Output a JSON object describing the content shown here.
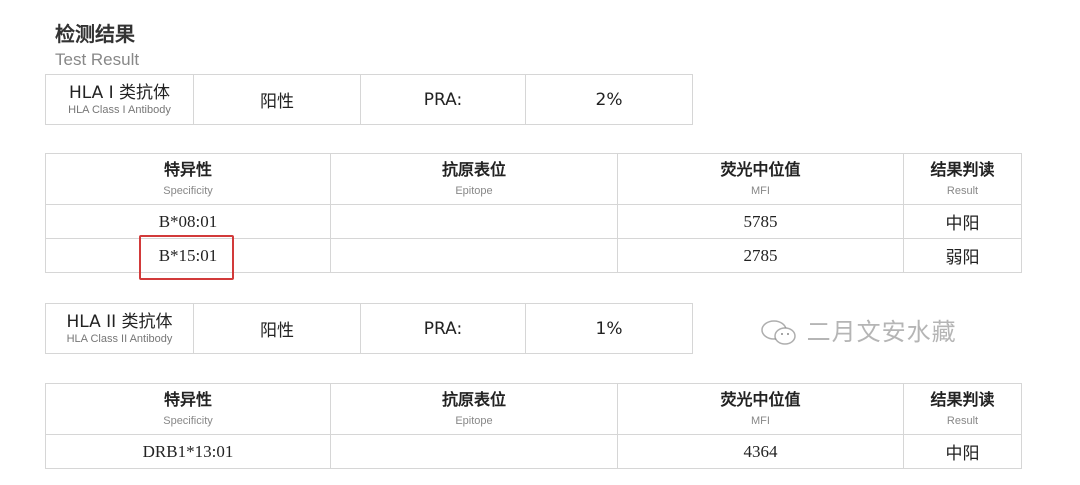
{
  "title": "检测结果",
  "subtitle": "Test Result",
  "class1": {
    "label": "HLA I 类抗体",
    "label_en": "HLA Class I Antibody",
    "status": "阳性",
    "pra_label": "PRA:",
    "pra_value": "2%",
    "headers": [
      {
        "zh": "特异性",
        "en": "Specificity"
      },
      {
        "zh": "抗原表位",
        "en": "Epitope"
      },
      {
        "zh": "荧光中位值",
        "en": "MFI"
      },
      {
        "zh": "结果判读",
        "en": "Result"
      }
    ],
    "rows": [
      {
        "specificity": "B*08:01",
        "epitope": "",
        "mfi": "5785",
        "result": "中阳"
      },
      {
        "specificity": "B*15:01",
        "epitope": "",
        "mfi": "2785",
        "result": "弱阳",
        "highlighted": true
      }
    ]
  },
  "class2": {
    "label": "HLA II 类抗体",
    "label_en": "HLA Class II Antibody",
    "status": "阳性",
    "pra_label": "PRA:",
    "pra_value": "1%",
    "headers": [
      {
        "zh": "特异性",
        "en": "Specificity"
      },
      {
        "zh": "抗原表位",
        "en": "Epitope"
      },
      {
        "zh": "荧光中位值",
        "en": "MFI"
      },
      {
        "zh": "结果判读",
        "en": "Result"
      }
    ],
    "rows": [
      {
        "specificity": "DRB1*13:01",
        "epitope": "",
        "mfi": "4364",
        "result": "中阳"
      }
    ]
  },
  "highlight_color": "#d23a3a",
  "watermark": {
    "icon": "wechat-icon",
    "text": "二月文安水藏"
  }
}
